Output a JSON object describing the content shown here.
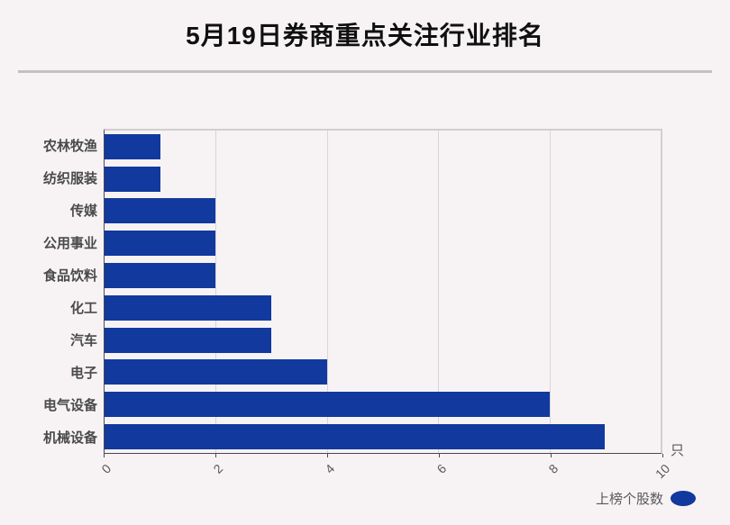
{
  "title": "5月19日券商重点关注行业排名",
  "axis": {
    "unit_label": "只"
  },
  "legend": {
    "label": "上榜个股数"
  },
  "colors": {
    "bar": "#11399e",
    "background": "#f7f3f4",
    "grid": "#d9d5d6",
    "axis_dark": "#4a4a4a",
    "border_light": "#d2cecf",
    "title_text": "#101010",
    "category_text": "#4a4a4a",
    "tick_text": "#595959",
    "separator": "#c3c0c1"
  },
  "chart_data": {
    "type": "bar",
    "orientation": "horizontal",
    "title": "5月19日券商重点关注行业排名",
    "categories": [
      "农林牧渔",
      "纺织服装",
      "传媒",
      "公用事业",
      "食品饮料",
      "化工",
      "汽车",
      "电子",
      "电气设备",
      "机械设备"
    ],
    "series": [
      {
        "name": "上榜个股数",
        "values": [
          1,
          1,
          2,
          2,
          2,
          3,
          3,
          4,
          8,
          9
        ]
      }
    ],
    "xticks": [
      0,
      2,
      4,
      6,
      8,
      10
    ],
    "xlim": [
      0,
      10
    ],
    "x_unit": "只",
    "grid": true,
    "legend_position": "bottom-right"
  }
}
